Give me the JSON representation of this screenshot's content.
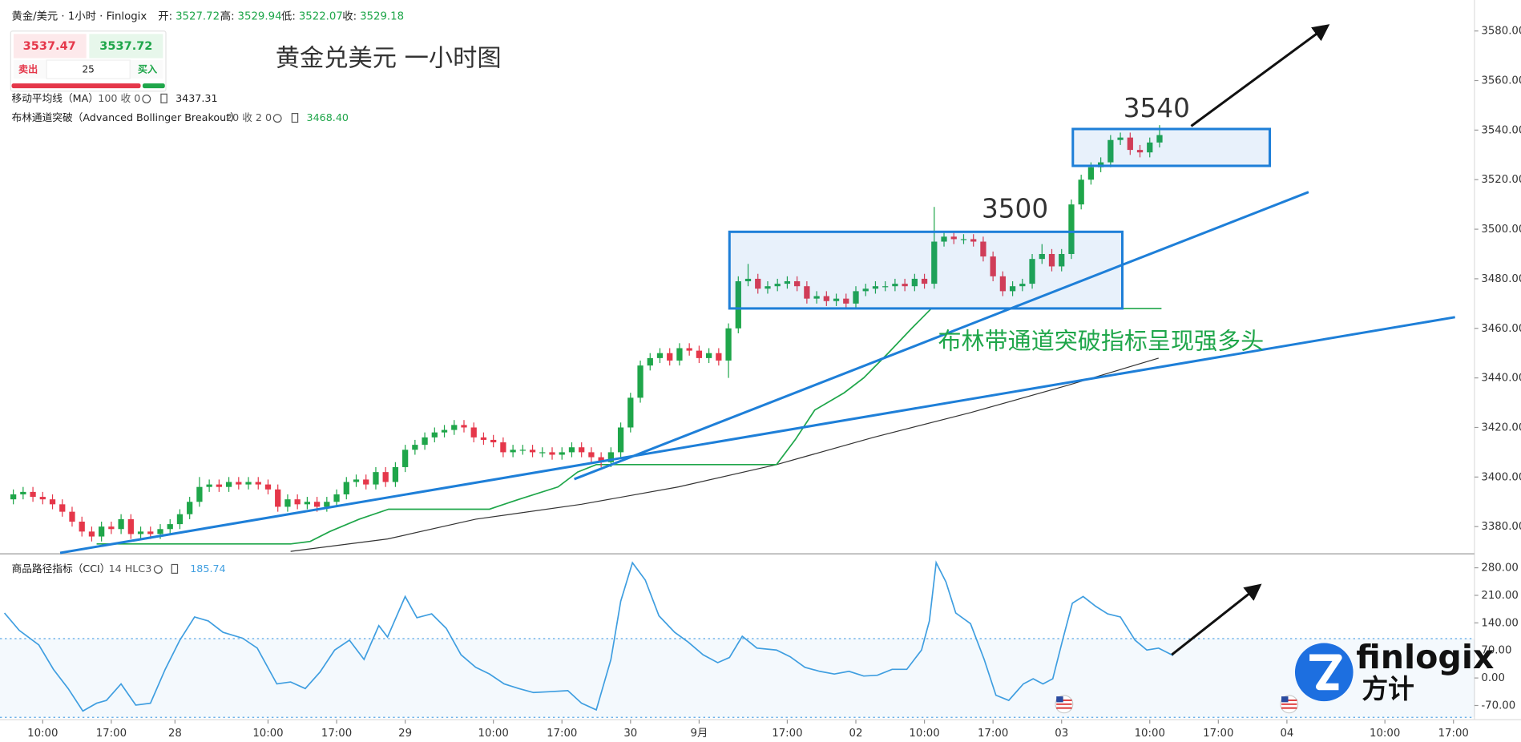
{
  "header": {
    "symbol": "黄金/美元 · 1小时 · Finlogix",
    "fields": [
      {
        "label": "开:",
        "value": "3527.72"
      },
      {
        "label": "高:",
        "value": "3529.94"
      },
      {
        "label": "低:",
        "value": "3522.07"
      },
      {
        "label": "收:",
        "value": "3529.18"
      }
    ]
  },
  "trade": {
    "sell": "3537.47",
    "buy": "3537.72",
    "sell_label": "卖出",
    "buy_label": "买入",
    "qty": "25"
  },
  "annotations": {
    "title": "黄金兑美元 一小时图",
    "level_1": "3500",
    "level_2": "3540",
    "note": "布林带通道突破指标呈现强多头"
  },
  "logo": {
    "brand": "finlogix",
    "brand_cn": "方计"
  },
  "chart_data": [
    {
      "type": "candlestick",
      "up_color": "#1fa64a",
      "down_color": "#e5374a",
      "xlim": [
        -1.36,
        149.14
      ],
      "ylim": [
        3369.4,
        3592.5
      ],
      "yticks": [
        {
          "value": 3380,
          "label": "3380.00"
        },
        {
          "value": 3400,
          "label": "3400.00"
        },
        {
          "value": 3420,
          "label": "3420.00"
        },
        {
          "value": 3440,
          "label": "3440.00"
        },
        {
          "value": 3460,
          "label": "3460.00"
        },
        {
          "value": 3480,
          "label": "3480.00"
        },
        {
          "value": 3500,
          "label": "3500.00"
        },
        {
          "value": 3520,
          "label": "3520.00"
        },
        {
          "value": 3540,
          "label": "3540.00"
        },
        {
          "value": 3560,
          "label": "3560.00"
        },
        {
          "value": 3580,
          "label": "3580.00"
        }
      ],
      "open": [
        3391,
        3393,
        3394,
        3392,
        3391,
        3389,
        3386,
        3382,
        3378,
        3376,
        3380,
        3379,
        3383,
        3377,
        3378,
        3377,
        3379,
        3381,
        3385,
        3390,
        3396,
        3397,
        3396,
        3398,
        3397,
        3398,
        3397,
        3395,
        3388,
        3391,
        3389,
        3390,
        3388,
        3390,
        3393,
        3398,
        3399,
        3397,
        3402,
        3398,
        3404,
        3411,
        3413,
        3416,
        3418,
        3419,
        3421,
        3420,
        3416,
        3415,
        3414,
        3410,
        3411,
        3411,
        3410,
        3410,
        3409,
        3410,
        3412,
        3410,
        3408,
        3406,
        3410,
        3420,
        3432,
        3445,
        3448,
        3450,
        3447,
        3452,
        3451,
        3448,
        3450,
        3447,
        3460,
        3479,
        3480,
        3476,
        3477,
        3478,
        3479,
        3477,
        3472,
        3473,
        3471,
        3472,
        3470,
        3475,
        3476,
        3477,
        3477,
        3478,
        3477,
        3480,
        3478,
        3495,
        3497,
        3496,
        3496,
        3495,
        3489,
        3481,
        3475,
        3477,
        3478,
        3488,
        3490,
        3485,
        3490,
        3510,
        3520,
        3525,
        3527,
        3536,
        3537,
        3532,
        3531,
        3535
      ],
      "high": [
        3395,
        3396,
        3396,
        3394,
        3393,
        3391,
        3388,
        3384,
        3380,
        3382,
        3382,
        3385,
        3385,
        3380,
        3380,
        3381,
        3383,
        3387,
        3392,
        3400,
        3399,
        3399,
        3400,
        3400,
        3400,
        3400,
        3399,
        3397,
        3393,
        3393,
        3392,
        3392,
        3392,
        3395,
        3400,
        3401,
        3401,
        3404,
        3404,
        3406,
        3413,
        3415,
        3418,
        3420,
        3421,
        3423,
        3423,
        3422,
        3418,
        3417,
        3416,
        3413,
        3413,
        3413,
        3412,
        3412,
        3412,
        3414,
        3414,
        3412,
        3410,
        3412,
        3422,
        3434,
        3447,
        3450,
        3452,
        3452,
        3454,
        3454,
        3453,
        3452,
        3452,
        3462,
        3481,
        3486,
        3482,
        3479,
        3480,
        3481,
        3481,
        3479,
        3475,
        3475,
        3474,
        3474,
        3477,
        3478,
        3479,
        3479,
        3480,
        3480,
        3482,
        3482,
        3509,
        3499,
        3499,
        3498,
        3498,
        3497,
        3491,
        3483,
        3479,
        3480,
        3490,
        3494,
        3492,
        3492,
        3512,
        3522,
        3527,
        3529,
        3538,
        3539,
        3539,
        3534,
        3537,
        3542
      ],
      "low": [
        3389,
        3391,
        3390,
        3389,
        3387,
        3384,
        3380,
        3376,
        3374,
        3374,
        3377,
        3377,
        3375,
        3375,
        3375,
        3375,
        3377,
        3379,
        3383,
        3388,
        3394,
        3394,
        3394,
        3395,
        3395,
        3395,
        3393,
        3386,
        3386,
        3387,
        3387,
        3386,
        3386,
        3388,
        3391,
        3396,
        3395,
        3395,
        3396,
        3396,
        3402,
        3409,
        3411,
        3414,
        3416,
        3417,
        3418,
        3414,
        3413,
        3412,
        3408,
        3408,
        3409,
        3408,
        3408,
        3407,
        3407,
        3408,
        3408,
        3406,
        3404,
        3404,
        3408,
        3418,
        3430,
        3443,
        3446,
        3445,
        3445,
        3449,
        3446,
        3446,
        3445,
        3440,
        3458,
        3477,
        3474,
        3474,
        3475,
        3476,
        3475,
        3470,
        3470,
        3469,
        3469,
        3468,
        3468,
        3473,
        3474,
        3475,
        3475,
        3475,
        3475,
        3476,
        3476,
        3493,
        3494,
        3494,
        3493,
        3487,
        3479,
        3473,
        3473,
        3475,
        3476,
        3486,
        3483,
        3483,
        3488,
        3508,
        3518,
        3523,
        3525,
        3534,
        3530,
        3529,
        3529,
        3533
      ],
      "close": [
        3393,
        3394,
        3392,
        3391,
        3389,
        3386,
        3382,
        3378,
        3376,
        3380,
        3379,
        3383,
        3377,
        3378,
        3377,
        3379,
        3381,
        3385,
        3390,
        3396,
        3397,
        3396,
        3398,
        3397,
        3398,
        3397,
        3395,
        3388,
        3391,
        3389,
        3390,
        3388,
        3390,
        3393,
        3398,
        3399,
        3397,
        3402,
        3398,
        3404,
        3411,
        3413,
        3416,
        3418,
        3419,
        3421,
        3420,
        3416,
        3415,
        3414,
        3410,
        3411,
        3411,
        3410,
        3410,
        3409,
        3410,
        3412,
        3410,
        3408,
        3406,
        3410,
        3420,
        3432,
        3445,
        3448,
        3450,
        3447,
        3452,
        3451,
        3448,
        3450,
        3447,
        3460,
        3479,
        3480,
        3476,
        3477,
        3478,
        3479,
        3477,
        3472,
        3473,
        3471,
        3472,
        3470,
        3475,
        3476,
        3477,
        3477,
        3478,
        3477,
        3480,
        3478,
        3495,
        3497,
        3496,
        3496,
        3495,
        3489,
        3481,
        3475,
        3477,
        3478,
        3488,
        3490,
        3485,
        3490,
        3510,
        3520,
        3525,
        3527,
        3536,
        3537,
        3532,
        3531,
        3535,
        3538
      ],
      "series": [
        {
          "name": "移动平均线（MA）",
          "params": "100 收 0",
          "last": "3437.31",
          "color": "#333333",
          "x": [
            28.3,
            38.2,
            47.2,
            58.0,
            67.9,
            77.9,
            87.8,
            97.7,
            107.6,
            116.9
          ],
          "values": [
            3370,
            3375,
            3383,
            3389,
            3396,
            3405,
            3416,
            3426,
            3437,
            3448
          ]
        },
        {
          "name": "布林通道突破（Advanced Bollinger Breakout）",
          "params": "20 收 2 0",
          "last": "3468.40",
          "color": "#1fa64a",
          "x": [
            8.5,
            28.3,
            30.3,
            32.3,
            35.3,
            38.3,
            48.6,
            50.1,
            51.6,
            55.6,
            57.6,
            59.5,
            77.9,
            79.8,
            81.8,
            84.8,
            86.8,
            89.3,
            91.7,
            93.7,
            117.2
          ],
          "values": [
            3373,
            3373,
            3374,
            3378,
            3383,
            3387,
            3387,
            3389,
            3391,
            3396,
            3402,
            3405,
            3405,
            3415,
            3427,
            3434,
            3440,
            3450,
            3460,
            3468,
            3468
          ]
        }
      ]
    },
    {
      "type": "line",
      "ylim": [
        -106,
        313
      ],
      "band": [
        -100,
        100
      ],
      "yticks": [
        {
          "value": -70,
          "label": "-70.00"
        },
        {
          "value": 0,
          "label": "0.00"
        },
        {
          "value": 70,
          "label": "70.00"
        },
        {
          "value": 140,
          "label": "140.00"
        },
        {
          "value": 210,
          "label": "210.00"
        },
        {
          "value": 280,
          "label": "280.00"
        }
      ],
      "xticks": [
        {
          "value": 3,
          "label": "10:00"
        },
        {
          "value": 10,
          "label": "17:00"
        },
        {
          "value": 16.5,
          "label": "28"
        },
        {
          "value": 26,
          "label": "10:00"
        },
        {
          "value": 33,
          "label": "17:00"
        },
        {
          "value": 40,
          "label": "29"
        },
        {
          "value": 49,
          "label": "10:00"
        },
        {
          "value": 56,
          "label": "17:00"
        },
        {
          "value": 63,
          "label": "30"
        },
        {
          "value": 70,
          "label": "9月"
        },
        {
          "value": 79,
          "label": "17:00"
        },
        {
          "value": 86,
          "label": "02"
        },
        {
          "value": 93,
          "label": "10:00"
        },
        {
          "value": 100,
          "label": "17:00"
        },
        {
          "value": 107,
          "label": "03"
        },
        {
          "value": 116,
          "label": "10:00"
        },
        {
          "value": 123,
          "label": "17:00"
        },
        {
          "value": 130,
          "label": "04"
        },
        {
          "value": 140,
          "label": "10:00"
        },
        {
          "value": 147,
          "label": "17:00"
        }
      ],
      "series": [
        {
          "name": "商品路径指标（CCI）",
          "params": "14 HLC3",
          "last": "185.74",
          "color": "#3f9ee0",
          "x": [
            -0.9,
            0.6,
            2.6,
            4.1,
            5.6,
            7.1,
            8.5,
            9.5,
            11.0,
            12.5,
            14.0,
            15.5,
            17.0,
            18.5,
            19.9,
            21.4,
            23.4,
            24.9,
            26.9,
            28.3,
            29.8,
            31.3,
            32.8,
            34.3,
            35.8,
            37.3,
            38.2,
            40.0,
            41.2,
            42.7,
            44.2,
            45.7,
            47.2,
            48.6,
            50.1,
            51.6,
            53.1,
            54.6,
            56.6,
            58.0,
            59.5,
            61.0,
            62.0,
            63.2,
            64.5,
            65.9,
            67.5,
            68.9,
            70.4,
            71.9,
            73.1,
            74.4,
            75.9,
            77.9,
            79.3,
            80.8,
            82.3,
            83.8,
            85.3,
            86.8,
            88.2,
            89.7,
            91.2,
            92.7,
            93.5,
            94.2,
            95.2,
            96.2,
            97.7,
            99.1,
            100.3,
            101.6,
            103.1,
            104.1,
            105.1,
            106.1,
            107.1,
            108.1,
            109.2,
            110.5,
            111.7,
            113.0,
            114.5,
            115.7,
            116.9,
            118.4
          ],
          "values": [
            165,
            121,
            84,
            22,
            -27,
            -84,
            -64,
            -57,
            -15,
            -69,
            -64,
            22,
            96,
            155,
            145,
            116,
            101,
            76,
            -15,
            -10,
            -27,
            15,
            71,
            96,
            47,
            133,
            104,
            207,
            153,
            163,
            126,
            59,
            27,
            10,
            -15,
            -27,
            -37,
            -35,
            -32,
            -64,
            -81,
            47,
            195,
            293,
            249,
            158,
            116,
            91,
            59,
            39,
            52,
            106,
            76,
            71,
            54,
            27,
            17,
            10,
            17,
            5,
            7,
            22,
            22,
            71,
            145,
            293,
            244,
            165,
            138,
            47,
            -44,
            -57,
            -15,
            -2,
            -15,
            -2,
            96,
            190,
            207,
            182,
            163,
            155,
            96,
            71,
            76,
            57
          ]
        }
      ]
    }
  ]
}
